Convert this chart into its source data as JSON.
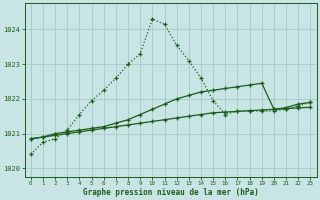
{
  "title": "Graphe pression niveau de la mer (hPa)",
  "background_color": "#c8e4e4",
  "grid_color": "#a8c8c8",
  "line_color": "#1a5c1a",
  "xlim": [
    -0.5,
    23.5
  ],
  "ylim": [
    1019.75,
    1024.75
  ],
  "yticks": [
    1020,
    1021,
    1022,
    1023,
    1024
  ],
  "xticks": [
    0,
    1,
    2,
    3,
    4,
    5,
    6,
    7,
    8,
    9,
    10,
    11,
    12,
    13,
    14,
    15,
    16,
    17,
    18,
    19,
    20,
    21,
    22,
    23
  ],
  "series_dotted_x": [
    0,
    1,
    2,
    3,
    4,
    5,
    6,
    7,
    8,
    9,
    10,
    11,
    12,
    13,
    14,
    15,
    16,
    17,
    18,
    19,
    20,
    21,
    22,
    23
  ],
  "series_dotted_y": [
    1020.4,
    1020.75,
    1020.85,
    1021.1,
    1021.55,
    1021.95,
    1022.25,
    1022.6,
    1023.0,
    1023.3,
    1024.3,
    1024.15,
    1023.55,
    1023.1,
    1022.6,
    1021.95,
    1021.55,
    1021.65,
    1021.65,
    1021.65,
    1021.65,
    1021.7,
    1021.8,
    1021.9
  ],
  "series_solid_x": [
    0,
    1,
    2,
    3,
    4,
    5,
    6,
    7,
    8,
    9,
    10,
    11,
    12,
    13,
    14,
    15,
    16,
    17,
    18,
    19,
    20,
    21,
    22,
    23
  ],
  "series_solid_y": [
    1020.85,
    1020.9,
    1021.0,
    1021.05,
    1021.1,
    1021.15,
    1021.2,
    1021.3,
    1021.4,
    1021.55,
    1021.7,
    1021.85,
    1022.0,
    1022.1,
    1022.2,
    1022.25,
    1022.3,
    1022.35,
    1022.4,
    1022.45,
    1021.7,
    1021.75,
    1021.85,
    1021.9
  ],
  "series_linear_x": [
    0,
    1,
    2,
    3,
    4,
    5,
    6,
    7,
    8,
    9,
    10,
    11,
    12,
    13,
    14,
    15,
    16,
    17,
    18,
    19,
    20,
    21,
    22,
    23
  ],
  "series_linear_y": [
    1020.85,
    1020.9,
    1020.95,
    1021.0,
    1021.05,
    1021.1,
    1021.15,
    1021.2,
    1021.25,
    1021.3,
    1021.35,
    1021.4,
    1021.45,
    1021.5,
    1021.55,
    1021.6,
    1021.62,
    1021.64,
    1021.66,
    1021.68,
    1021.7,
    1021.72,
    1021.74,
    1021.76
  ]
}
